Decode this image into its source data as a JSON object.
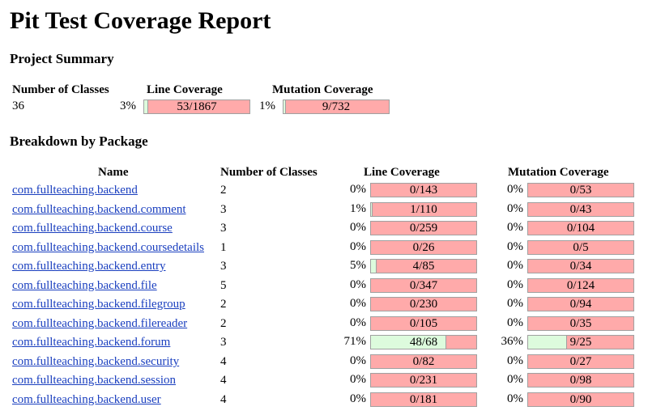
{
  "page": {
    "title": "Pit Test Coverage Report"
  },
  "summary": {
    "heading": "Project Summary",
    "columns": {
      "classes": "Number of Classes",
      "line": "Line Coverage",
      "mutation": "Mutation Coverage"
    },
    "classes": "36",
    "line": {
      "pct": "3%",
      "text": "53/1867",
      "ratio": 0.028
    },
    "mutation": {
      "pct": "1%",
      "text": "9/732",
      "ratio": 0.012
    }
  },
  "breakdown": {
    "heading": "Breakdown by Package",
    "columns": {
      "name": "Name",
      "classes": "Number of Classes",
      "line": "Line Coverage",
      "mutation": "Mutation Coverage"
    },
    "rows": [
      {
        "name": "com.fullteaching.backend",
        "classes": "2",
        "line_pct": "0%",
        "line_text": "0/143",
        "line_ratio": 0,
        "mut_pct": "0%",
        "mut_text": "0/53",
        "mut_ratio": 0
      },
      {
        "name": "com.fullteaching.backend.comment",
        "classes": "3",
        "line_pct": "1%",
        "line_text": "1/110",
        "line_ratio": 0.009,
        "mut_pct": "0%",
        "mut_text": "0/43",
        "mut_ratio": 0
      },
      {
        "name": "com.fullteaching.backend.course",
        "classes": "3",
        "line_pct": "0%",
        "line_text": "0/259",
        "line_ratio": 0,
        "mut_pct": "0%",
        "mut_text": "0/104",
        "mut_ratio": 0
      },
      {
        "name": "com.fullteaching.backend.coursedetails",
        "classes": "1",
        "line_pct": "0%",
        "line_text": "0/26",
        "line_ratio": 0,
        "mut_pct": "0%",
        "mut_text": "0/5",
        "mut_ratio": 0
      },
      {
        "name": "com.fullteaching.backend.entry",
        "classes": "3",
        "line_pct": "5%",
        "line_text": "4/85",
        "line_ratio": 0.047,
        "mut_pct": "0%",
        "mut_text": "0/34",
        "mut_ratio": 0
      },
      {
        "name": "com.fullteaching.backend.file",
        "classes": "5",
        "line_pct": "0%",
        "line_text": "0/347",
        "line_ratio": 0,
        "mut_pct": "0%",
        "mut_text": "0/124",
        "mut_ratio": 0
      },
      {
        "name": "com.fullteaching.backend.filegroup",
        "classes": "2",
        "line_pct": "0%",
        "line_text": "0/230",
        "line_ratio": 0,
        "mut_pct": "0%",
        "mut_text": "0/94",
        "mut_ratio": 0
      },
      {
        "name": "com.fullteaching.backend.filereader",
        "classes": "2",
        "line_pct": "0%",
        "line_text": "0/105",
        "line_ratio": 0,
        "mut_pct": "0%",
        "mut_text": "0/35",
        "mut_ratio": 0
      },
      {
        "name": "com.fullteaching.backend.forum",
        "classes": "3",
        "line_pct": "71%",
        "line_text": "48/68",
        "line_ratio": 0.706,
        "mut_pct": "36%",
        "mut_text": "9/25",
        "mut_ratio": 0.36
      },
      {
        "name": "com.fullteaching.backend.security",
        "classes": "4",
        "line_pct": "0%",
        "line_text": "0/82",
        "line_ratio": 0,
        "mut_pct": "0%",
        "mut_text": "0/27",
        "mut_ratio": 0
      },
      {
        "name": "com.fullteaching.backend.session",
        "classes": "4",
        "line_pct": "0%",
        "line_text": "0/231",
        "line_ratio": 0,
        "mut_pct": "0%",
        "mut_text": "0/98",
        "mut_ratio": 0
      },
      {
        "name": "com.fullteaching.backend.user",
        "classes": "4",
        "line_pct": "0%",
        "line_text": "0/181",
        "line_ratio": 0,
        "mut_pct": "0%",
        "mut_text": "0/90",
        "mut_ratio": 0
      }
    ]
  },
  "colors": {
    "covered": "#ddfbdd",
    "uncovered": "#ffaaaa",
    "link": "#1a3fbf"
  }
}
